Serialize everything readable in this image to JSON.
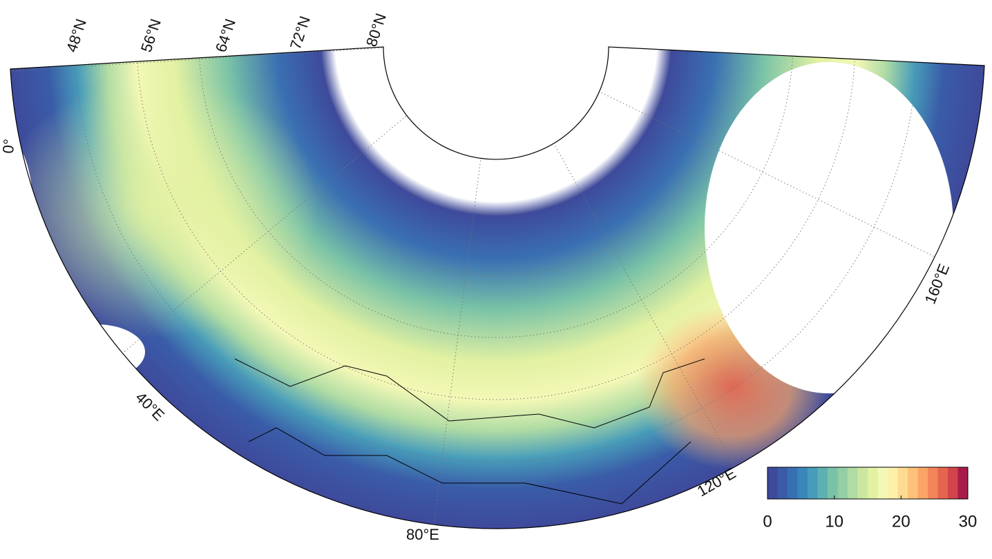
{
  "map": {
    "latitude_labels": [
      "48°N",
      "56°N",
      "64°N",
      "72°N",
      "80°N"
    ],
    "longitude_labels": [
      "0°",
      "40°E",
      "80°E",
      "120°E",
      "160°E"
    ],
    "colorbar": {
      "lim": [
        0,
        30
      ],
      "ticks": [
        0,
        10,
        20,
        30
      ],
      "colors": [
        "#3e4a9b",
        "#3a5ca8",
        "#3670b2",
        "#3a86b9",
        "#479cba",
        "#5db1b2",
        "#79c2a7",
        "#94cfa4",
        "#b0dca4",
        "#cbe7a1",
        "#e2f1a2",
        "#f3f8b6",
        "#fdf0ab",
        "#fedb90",
        "#fdc17a",
        "#fba468",
        "#f4845a",
        "#e6654f",
        "#d14449",
        "#a81c49"
      ]
    }
  }
}
